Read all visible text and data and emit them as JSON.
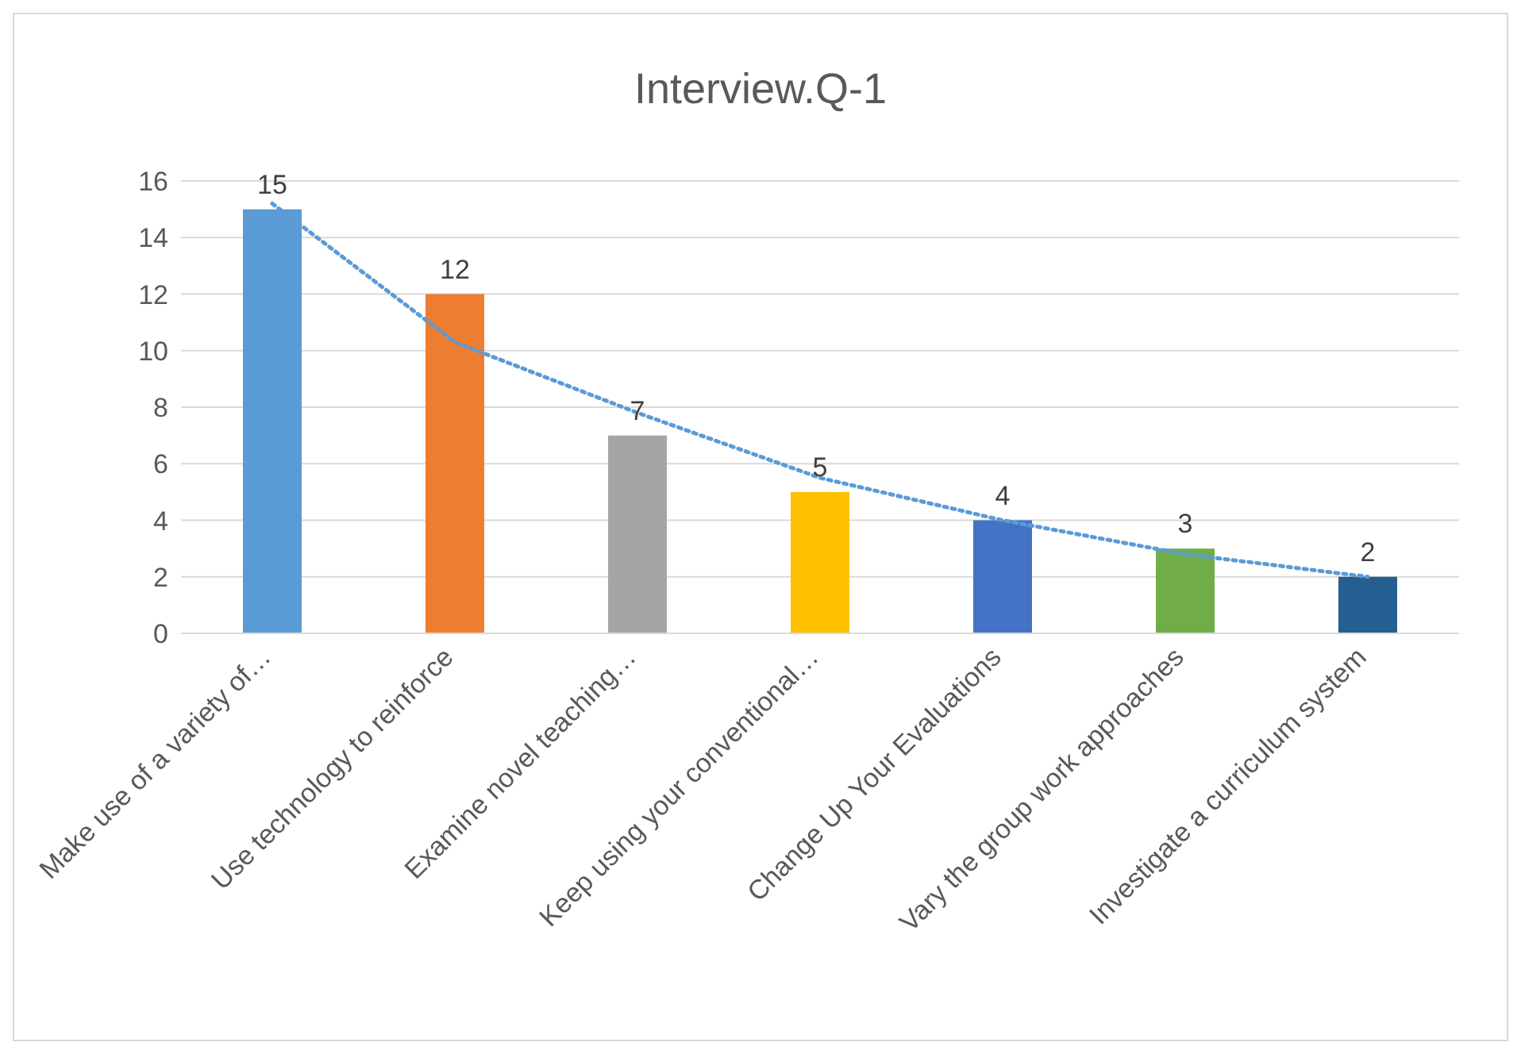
{
  "chart_data": {
    "type": "bar",
    "title": "Interview.Q-1",
    "categories": [
      "Make use of a variety of…",
      "Use technology to reinforce",
      "Examine novel teaching…",
      "Keep using your conventional…",
      "Change Up Your Evaluations",
      "Vary the group work approaches",
      "Investigate a curriculum system"
    ],
    "values": [
      15,
      12,
      7,
      5,
      4,
      3,
      2
    ],
    "value_labels": [
      "15",
      "12",
      "7",
      "5",
      "4",
      "3",
      "2"
    ],
    "colors": [
      "#5b9bd5",
      "#ed7d31",
      "#a5a5a5",
      "#ffc000",
      "#4472c4",
      "#70ad47",
      "#255e91"
    ],
    "series": [
      {
        "type": "line",
        "color": "#5b9bd5",
        "line_style": "dotted",
        "marker": "none",
        "x": [
          "Make use of a variety of…",
          "Use technology to reinforce",
          "Examine novel teaching…",
          "Keep using your conventional…",
          "Change Up Your Evaluations",
          "Vary the group work approaches",
          "Investigate a curriculum system"
        ],
        "values": [
          15.2,
          10.3,
          7.8,
          5.5,
          4.0,
          2.8,
          2.0
        ]
      }
    ],
    "ylim": [
      0,
      16
    ],
    "yticks": [
      0,
      2,
      4,
      6,
      8,
      10,
      12,
      14,
      16
    ],
    "grid": "y"
  }
}
